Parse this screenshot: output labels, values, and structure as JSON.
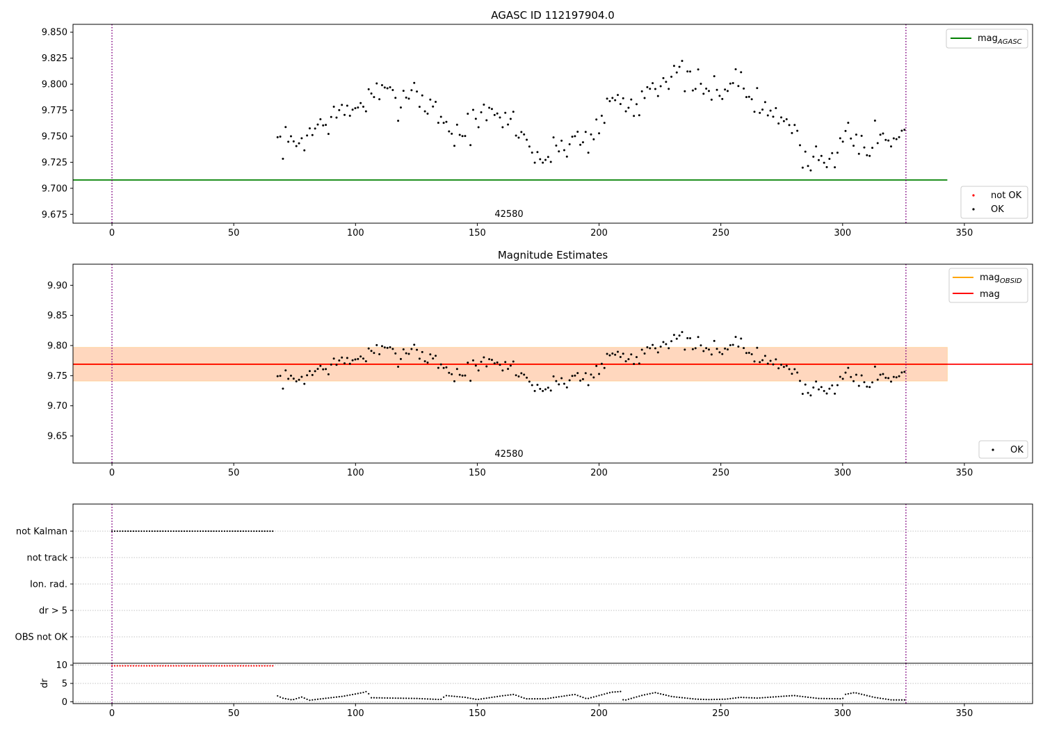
{
  "chart_data": [
    {
      "id": "panel1",
      "type": "scatter",
      "title": "AGASC ID 112197904.0",
      "xlabel": "",
      "ylabel": "",
      "xlim": [
        -16,
        378
      ],
      "ylim": [
        9.6665,
        9.8575
      ],
      "xticks": [
        0,
        50,
        100,
        150,
        200,
        250,
        300,
        350
      ],
      "yticks": [
        "9.675",
        "9.700",
        "9.725",
        "9.750",
        "9.775",
        "9.800",
        "9.825",
        "9.850"
      ],
      "vlines": [
        0,
        326
      ],
      "annotation": "42580",
      "mag_agasc": 9.708,
      "mag_agasc_xrange": [
        -16,
        343
      ],
      "legend_top": [
        {
          "name": "mag",
          "sub": "AGASC",
          "color": "#008000"
        }
      ],
      "legend_bottom": [
        {
          "name": "not OK",
          "color": "#ff0000"
        },
        {
          "name": "OK",
          "color": "#000000"
        }
      ],
      "curve": {
        "x_start": 68,
        "x_end": 326,
        "step": 1.1,
        "knots": [
          [
            68,
            9.745
          ],
          [
            75,
            9.742
          ],
          [
            88,
            9.765
          ],
          [
            100,
            9.777
          ],
          [
            107,
            9.789
          ],
          [
            112,
            9.79
          ],
          [
            118,
            9.784
          ],
          [
            124,
            9.799
          ],
          [
            128,
            9.781
          ],
          [
            133,
            9.776
          ],
          [
            140,
            9.752
          ],
          [
            145,
            9.754
          ],
          [
            150,
            9.767
          ],
          [
            155,
            9.77
          ],
          [
            160,
            9.766
          ],
          [
            165,
            9.764
          ],
          [
            172,
            9.738
          ],
          [
            178,
            9.726
          ],
          [
            183,
            9.738
          ],
          [
            190,
            9.749
          ],
          [
            195,
            9.747
          ],
          [
            200,
            9.76
          ],
          [
            205,
            9.786
          ],
          [
            210,
            9.784
          ],
          [
            215,
            9.775
          ],
          [
            220,
            9.8
          ],
          [
            225,
            9.804
          ],
          [
            230,
            9.806
          ],
          [
            235,
            9.808
          ],
          [
            240,
            9.797
          ],
          [
            245,
            9.79
          ],
          [
            250,
            9.799
          ],
          [
            258,
            9.802
          ],
          [
            265,
            9.78
          ],
          [
            270,
            9.772
          ],
          [
            278,
            9.766
          ],
          [
            283,
            9.732
          ],
          [
            288,
            9.733
          ],
          [
            293,
            9.725
          ],
          [
            297,
            9.728
          ],
          [
            302,
            9.765
          ],
          [
            305,
            9.752
          ],
          [
            310,
            9.743
          ],
          [
            315,
            9.752
          ],
          [
            320,
            9.742
          ],
          [
            326,
            9.753
          ]
        ],
        "noise": 0.011,
        "seed": 7
      }
    },
    {
      "id": "panel2",
      "type": "scatter",
      "title": "Magnitude Estimates",
      "xlabel": "",
      "ylabel": "",
      "xlim": [
        -16,
        378
      ],
      "ylim": [
        9.605,
        9.935
      ],
      "xticks": [
        0,
        50,
        100,
        150,
        200,
        250,
        300,
        350
      ],
      "yticks": [
        "9.65",
        "9.70",
        "9.75",
        "9.80",
        "9.85",
        "9.90"
      ],
      "vlines": [
        0,
        326
      ],
      "annotation": "42580",
      "mag": 9.769,
      "mag_obsid": 9.769,
      "band_obsid": [
        9.741,
        9.797
      ],
      "band_mag": [
        9.741,
        9.797
      ],
      "band_xrange": [
        -16,
        343
      ],
      "legend_top": [
        {
          "name": "mag",
          "sub": "OBSID",
          "color": "#ffa500"
        },
        {
          "name": "mag",
          "sub": "",
          "color": "#ff0000"
        }
      ],
      "legend_bottom": [
        {
          "name": "OK",
          "color": "#000000"
        }
      ]
    },
    {
      "id": "panel3",
      "type": "scatter",
      "title": "",
      "xlabel": "",
      "ylabel": "",
      "xlim": [
        -16,
        378
      ],
      "categories": [
        "not Kalman",
        "not track",
        "Ion. rad.",
        "dr > 5",
        "OBS not OK"
      ],
      "flag_ranges": [
        {
          "category": "not Kalman",
          "x_start": 0,
          "x_end": 67
        }
      ],
      "vlines": [
        0,
        326
      ]
    },
    {
      "id": "panel4",
      "type": "scatter",
      "title": "",
      "xlabel": "",
      "ylabel": "dr",
      "xlim": [
        -16,
        378
      ],
      "ylim": [
        -0.5,
        10.5
      ],
      "xticks": [
        0,
        50,
        100,
        150,
        200,
        250,
        300,
        350
      ],
      "yticks": [
        "0",
        "5",
        "10"
      ],
      "vlines": [
        0,
        326
      ],
      "red_x_range": [
        0,
        67
      ],
      "red_value": 9.8,
      "dr_knots": [
        [
          68,
          1.6
        ],
        [
          70,
          1.0
        ],
        [
          74,
          0.5
        ],
        [
          78,
          1.3
        ],
        [
          81,
          0.4
        ],
        [
          86,
          0.8
        ],
        [
          95,
          1.5
        ],
        [
          103,
          2.5
        ],
        [
          105,
          2.9
        ],
        [
          106,
          1.1
        ],
        [
          115,
          1.0
        ],
        [
          125,
          0.9
        ],
        [
          135,
          0.6
        ],
        [
          137,
          1.7
        ],
        [
          145,
          1.2
        ],
        [
          150,
          0.6
        ],
        [
          160,
          1.6
        ],
        [
          165,
          2.0
        ],
        [
          170,
          0.8
        ],
        [
          178,
          0.8
        ],
        [
          190,
          2.0
        ],
        [
          195,
          0.8
        ],
        [
          205,
          2.6
        ],
        [
          209,
          2.8
        ],
        [
          210,
          0.3
        ],
        [
          218,
          1.8
        ],
        [
          223,
          2.5
        ],
        [
          230,
          1.4
        ],
        [
          240,
          0.7
        ],
        [
          245,
          0.6
        ],
        [
          252,
          0.7
        ],
        [
          258,
          1.2
        ],
        [
          265,
          1.0
        ],
        [
          280,
          1.7
        ],
        [
          290,
          0.9
        ],
        [
          300,
          0.8
        ],
        [
          301,
          2.0
        ],
        [
          305,
          2.5
        ],
        [
          313,
          1.2
        ],
        [
          320,
          0.5
        ],
        [
          326,
          0.5
        ]
      ],
      "dr_step": 1.1
    }
  ]
}
